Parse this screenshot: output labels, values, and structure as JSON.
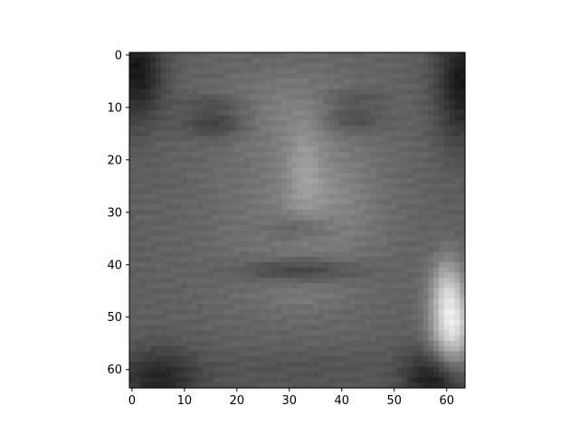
{
  "chart_data": {
    "type": "heatmap",
    "title": "",
    "xlabel": "",
    "ylabel": "",
    "colormap": "gray",
    "image_size": [
      64,
      64
    ],
    "xlim": [
      -0.5,
      63.5
    ],
    "ylim": [
      63.5,
      -0.5
    ],
    "x_ticks": [
      0,
      10,
      20,
      30,
      40,
      50,
      60
    ],
    "y_ticks": [
      0,
      10,
      20,
      30,
      40,
      50,
      60
    ],
    "x_tick_labels": [
      "0",
      "10",
      "20",
      "30",
      "40",
      "50",
      "60"
    ],
    "y_tick_labels": [
      "0",
      "10",
      "20",
      "30",
      "40",
      "50",
      "60"
    ],
    "grid": false,
    "legend": "none",
    "content": "grayscale face photograph"
  }
}
